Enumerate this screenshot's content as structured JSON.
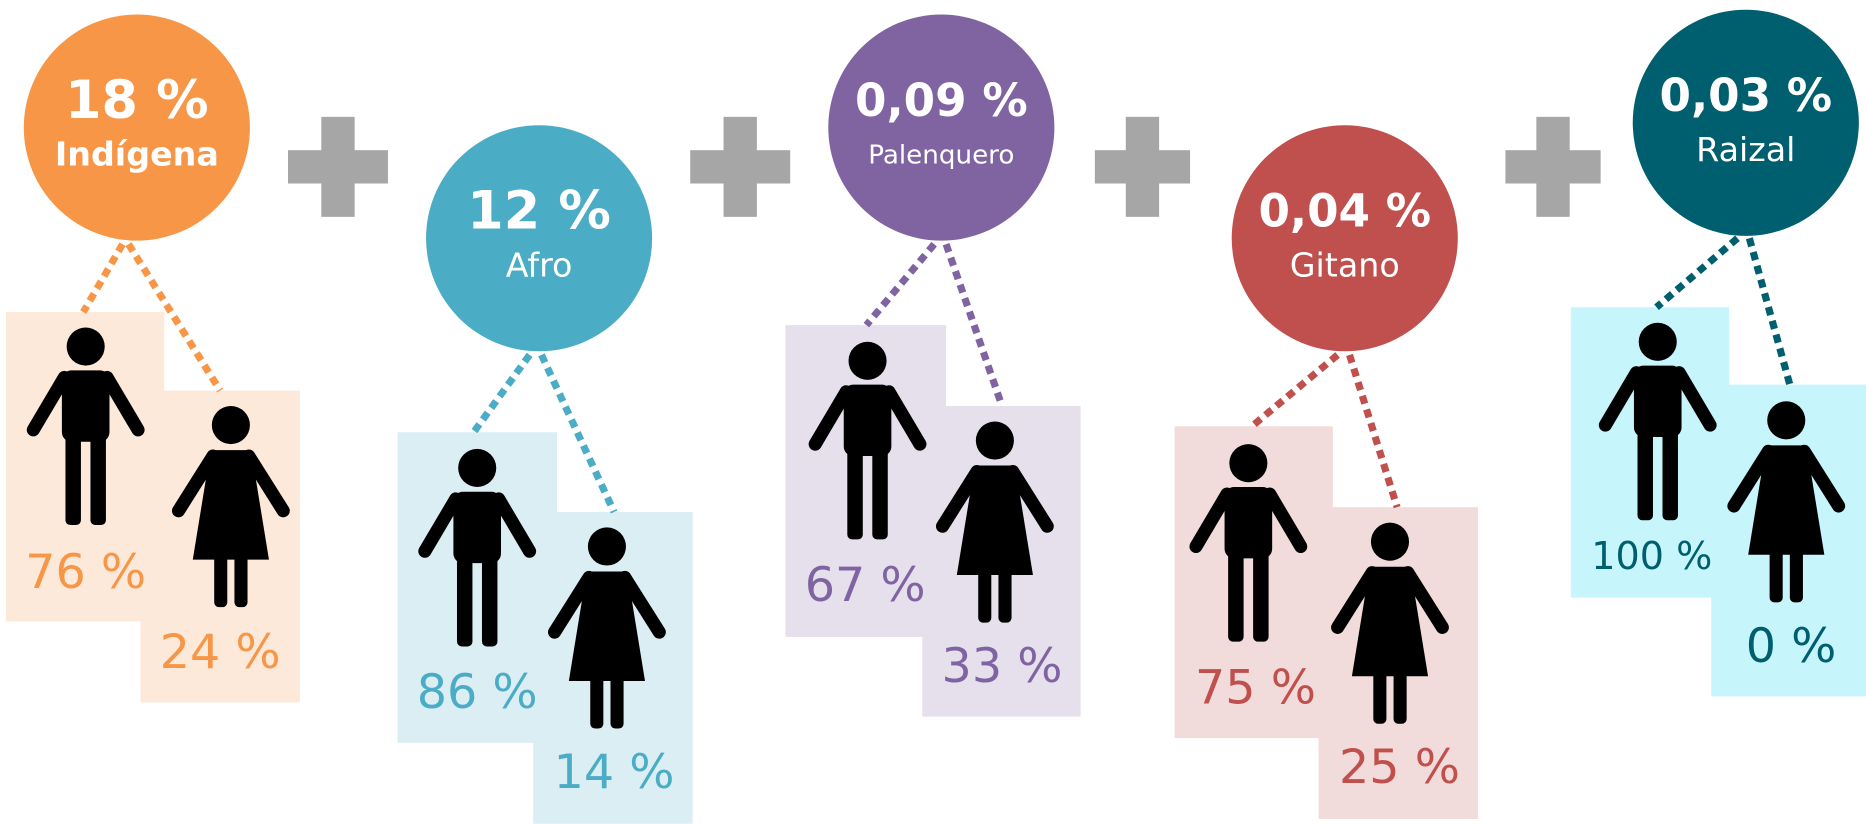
{
  "groups": [
    {
      "value": "18 %",
      "label": "Indígena",
      "male": "76 %",
      "female": "24 %",
      "color": "#f79646",
      "box": "#fde9d9"
    },
    {
      "value": "12 %",
      "label": "Afro",
      "male": "86 %",
      "female": "14 %",
      "color": "#4bacc6",
      "box": "#dbeef4"
    },
    {
      "value": "0,09 %",
      "label": "Palenquero",
      "male": "67 %",
      "female": "33 %",
      "color": "#8064a2",
      "box": "#e5e0ec"
    },
    {
      "value": "0,04 %",
      "label": "Gitano",
      "male": "75 %",
      "female": "25 %",
      "color": "#c0504d",
      "box": "#f2dcdb"
    },
    {
      "value": "0,03 %",
      "label": "Raizal",
      "male": "100 %",
      "female": "0 %",
      "color": "#005f6e",
      "box": "#c6f5fc"
    }
  ]
}
